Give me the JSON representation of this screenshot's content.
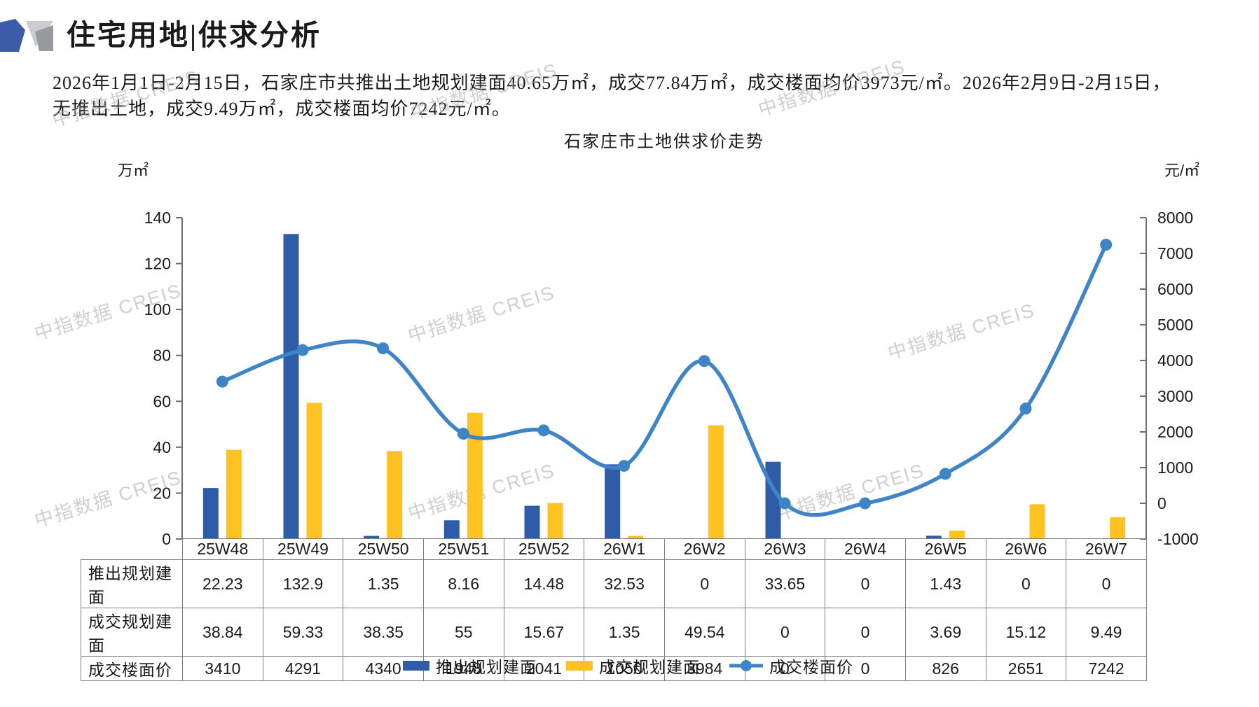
{
  "header": {
    "title": "住宅用地|供求分析"
  },
  "summary": {
    "line1": "2026年1月1日-2月15日，石家庄市共推出土地规划建面40.65万㎡，成交77.84万㎡，成交楼面均价3973元/㎡。2026年2月9日-2月15日，",
    "line2": "无推出土地，成交9.49万㎡，成交楼面均价7242元/㎡。"
  },
  "watermark": {
    "text": "中指数据 CREIS"
  },
  "chart_data": {
    "type": "combo",
    "title": "石家庄市土地供求价走势",
    "grid": false,
    "legend_position": "bottom",
    "categories": [
      "25W48",
      "25W49",
      "25W50",
      "25W51",
      "25W52",
      "26W1",
      "26W2",
      "26W3",
      "26W4",
      "26W5",
      "26W6",
      "26W7"
    ],
    "series": [
      {
        "name": "推出规划建面",
        "type": "bar",
        "axis": "left",
        "color": "#2F5CA8",
        "values": [
          22.23,
          132.9,
          1.35,
          8.16,
          14.48,
          32.53,
          0,
          33.65,
          0,
          1.43,
          0,
          0
        ]
      },
      {
        "name": "成交规划建面",
        "type": "bar",
        "axis": "left",
        "color": "#FFC220",
        "values": [
          38.84,
          59.33,
          38.35,
          55,
          15.67,
          1.35,
          49.54,
          0,
          0,
          3.69,
          15.12,
          9.49
        ]
      },
      {
        "name": "成交楼面价",
        "type": "line",
        "axis": "right",
        "color": "#3E84C6",
        "values": [
          3410,
          4291,
          4340,
          1948,
          2041,
          1050,
          3984,
          0,
          0,
          826,
          2651,
          7242
        ]
      }
    ],
    "left_axis": {
      "unit": "万㎡",
      "min": 0,
      "max": 140,
      "step": 20,
      "ticks": [
        0,
        20,
        40,
        60,
        80,
        100,
        120,
        140
      ]
    },
    "right_axis": {
      "unit": "元/㎡",
      "min": -1000,
      "max": 8000,
      "step": 1000,
      "ticks": [
        -1000,
        0,
        1000,
        2000,
        3000,
        4000,
        5000,
        6000,
        7000,
        8000
      ]
    }
  },
  "table": {
    "row_headers": [
      "推出规划建面",
      "成交规划建面",
      "成交楼面价"
    ],
    "columns": [
      "25W48",
      "25W49",
      "25W50",
      "25W51",
      "25W52",
      "26W1",
      "26W2",
      "26W3",
      "26W4",
      "26W5",
      "26W6",
      "26W7"
    ],
    "rows": [
      [
        "22.23",
        "132.9",
        "1.35",
        "8.16",
        "14.48",
        "32.53",
        "0",
        "33.65",
        "0",
        "1.43",
        "0",
        "0"
      ],
      [
        "38.84",
        "59.33",
        "38.35",
        "55",
        "15.67",
        "1.35",
        "49.54",
        "0",
        "0",
        "3.69",
        "15.12",
        "9.49"
      ],
      [
        "3410",
        "4291",
        "4340",
        "1948",
        "2041",
        "1050",
        "3984",
        "0",
        "0",
        "826",
        "2651",
        "7242"
      ]
    ]
  },
  "colors": {
    "bar_supply": "#2F5CA8",
    "bar_deal": "#FFC220",
    "line_price": "#3E84C6",
    "axis": "#6E6E6E",
    "table_border": "#7F7F7F",
    "logo_blue": "#3A5CA9",
    "logo_gray_light": "#CBCCCF",
    "logo_gray_dark": "#97999E"
  }
}
